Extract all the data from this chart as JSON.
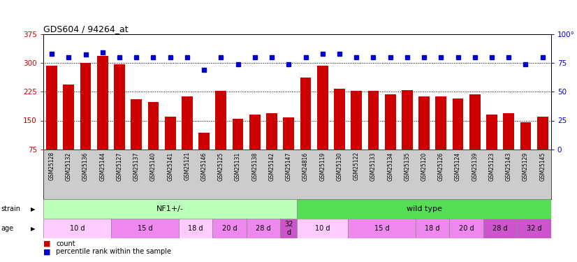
{
  "title": "GDS604 / 94264_at",
  "samples": [
    "GSM25128",
    "GSM25132",
    "GSM25136",
    "GSM25144",
    "GSM25127",
    "GSM25137",
    "GSM25140",
    "GSM25141",
    "GSM25121",
    "GSM25146",
    "GSM25125",
    "GSM25131",
    "GSM25138",
    "GSM25142",
    "GSM25147",
    "GSM24816",
    "GSM25119",
    "GSM25130",
    "GSM25122",
    "GSM25133",
    "GSM25134",
    "GSM25135",
    "GSM25120",
    "GSM25126",
    "GSM25124",
    "GSM25139",
    "GSM25123",
    "GSM25143",
    "GSM25129",
    "GSM25145"
  ],
  "counts": [
    293,
    243,
    300,
    318,
    296,
    205,
    198,
    160,
    213,
    118,
    228,
    155,
    165,
    170,
    158,
    262,
    293,
    233,
    228,
    227,
    218,
    230,
    213,
    213,
    207,
    218,
    165,
    170,
    145,
    160
  ],
  "percentiles": [
    83,
    80,
    82,
    84,
    80,
    80,
    80,
    80,
    80,
    69,
    80,
    74,
    80,
    80,
    74,
    80,
    83,
    83,
    80,
    80,
    80,
    80,
    80,
    80,
    80,
    80,
    80,
    80,
    74,
    80
  ],
  "bar_color": "#cc0000",
  "dot_color": "#0000cc",
  "ylim_left": [
    75,
    375
  ],
  "ylim_right": [
    0,
    100
  ],
  "yticks_left": [
    75,
    150,
    225,
    300,
    375
  ],
  "yticks_right": [
    0,
    25,
    50,
    75,
    100
  ],
  "ytick_labels_right": [
    "0",
    "25",
    "50",
    "75",
    "100°"
  ],
  "hlines": [
    150,
    225,
    300
  ],
  "strain_groups": [
    {
      "label": "NF1+/-",
      "start": 0,
      "end": 15,
      "color": "#bbffbb"
    },
    {
      "label": "wild type",
      "start": 15,
      "end": 30,
      "color": "#55dd55"
    }
  ],
  "age_groups": [
    {
      "label": "10 d",
      "start": 0,
      "end": 4,
      "color": "#ffccff"
    },
    {
      "label": "15 d",
      "start": 4,
      "end": 8,
      "color": "#ee88ee"
    },
    {
      "label": "18 d",
      "start": 8,
      "end": 10,
      "color": "#ffccff"
    },
    {
      "label": "20 d",
      "start": 10,
      "end": 12,
      "color": "#ee88ee"
    },
    {
      "label": "28 d",
      "start": 12,
      "end": 14,
      "color": "#ee88ee"
    },
    {
      "label": "32\nd",
      "start": 14,
      "end": 15,
      "color": "#cc55cc"
    },
    {
      "label": "10 d",
      "start": 15,
      "end": 18,
      "color": "#ffccff"
    },
    {
      "label": "15 d",
      "start": 18,
      "end": 22,
      "color": "#ee88ee"
    },
    {
      "label": "18 d",
      "start": 22,
      "end": 24,
      "color": "#ee88ee"
    },
    {
      "label": "20 d",
      "start": 24,
      "end": 26,
      "color": "#ee88ee"
    },
    {
      "label": "28 d",
      "start": 26,
      "end": 28,
      "color": "#cc55cc"
    },
    {
      "label": "32 d",
      "start": 28,
      "end": 30,
      "color": "#cc55cc"
    }
  ],
  "bg_color": "#ffffff",
  "plot_bg_color": "#ffffff",
  "xtick_bg_color": "#cccccc",
  "xlabel_color": "#cc0000",
  "ylabel_right_color": "#0000cc",
  "n_samples": 30
}
